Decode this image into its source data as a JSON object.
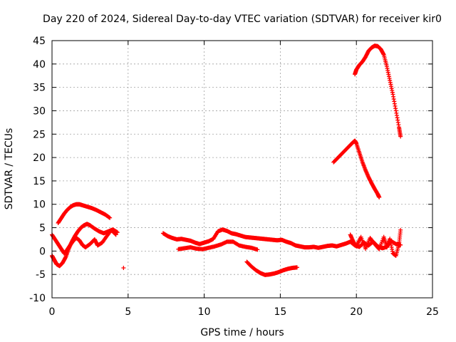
{
  "chart_data": {
    "type": "scatter",
    "title": "Day 220 of 2024, Sidereal Day-to-day VTEC variation (SDTVAR) for receiver kir0",
    "xlabel": "GPS time / hours",
    "ylabel": "SDTVAR / TECUs",
    "xlim": [
      0,
      25
    ],
    "ylim": [
      -10,
      45
    ],
    "xticks": [
      0,
      5,
      10,
      15,
      20,
      25
    ],
    "yticks": [
      -10,
      -5,
      0,
      5,
      10,
      15,
      20,
      25,
      30,
      35,
      40,
      45
    ],
    "grid": true,
    "marker": "+",
    "color": "#ff0000",
    "series": [
      {
        "name": "upper-arc-early",
        "x": [
          0.4,
          0.6,
          0.8,
          1.0,
          1.2,
          1.4,
          1.6,
          1.8,
          2.0,
          2.3,
          2.6,
          2.9,
          3.2,
          3.5,
          3.8
        ],
        "y": [
          6,
          7,
          8,
          8.8,
          9.4,
          9.8,
          10,
          10,
          9.8,
          9.5,
          9.2,
          8.8,
          8.3,
          7.8,
          7.1
        ]
      },
      {
        "name": "loop-early-a",
        "x": [
          0.0,
          0.1,
          0.2,
          0.3,
          0.5,
          0.7,
          0.9,
          1.1,
          1.3,
          1.5,
          1.7,
          1.9,
          2.1,
          2.3,
          2.5,
          2.8,
          3.1,
          3.4,
          3.7,
          4.0,
          4.3
        ],
        "y": [
          -1,
          -1.6,
          -2.2,
          -2.8,
          -3.2,
          -2.5,
          -1.3,
          0.5,
          2,
          3.2,
          4.2,
          5,
          5.5,
          5.8,
          5.5,
          4.8,
          4.2,
          3.8,
          4.2,
          4.6,
          4.0
        ]
      },
      {
        "name": "loop-early-b",
        "x": [
          0.0,
          0.2,
          0.4,
          0.6,
          0.8,
          1.0,
          1.2,
          1.4,
          1.6,
          1.8,
          2.0,
          2.2,
          2.5,
          2.8,
          3.0,
          3.3,
          3.6,
          3.9,
          4.2
        ],
        "y": [
          3.5,
          2.5,
          1.5,
          0.5,
          -0.5,
          0.3,
          1.3,
          2.2,
          2.8,
          2.3,
          1.3,
          0.8,
          1.5,
          2.5,
          1.2,
          1.8,
          3.2,
          4.5,
          3.5
        ]
      },
      {
        "name": "outlier",
        "x": [
          4.7
        ],
        "y": [
          -3.6
        ]
      },
      {
        "name": "middle-band",
        "x": [
          7.3,
          7.6,
          7.9,
          8.2,
          8.5,
          8.8,
          9.1,
          9.4,
          9.7,
          10.0,
          10.3,
          10.6,
          10.9,
          11.2,
          11.5,
          11.8,
          12.1,
          12.4,
          12.7,
          13.0,
          13.3,
          13.6,
          13.9,
          14.2,
          14.5,
          14.8,
          15.1,
          15.4,
          15.7,
          16.0,
          16.3,
          16.6,
          16.9,
          17.2,
          17.5,
          17.8,
          18.1,
          18.4,
          18.7,
          19.0,
          19.3,
          19.6,
          19.9,
          20.2,
          20.5,
          20.8,
          21.1,
          21.4,
          21.7,
          22.0,
          22.3,
          22.6,
          22.9
        ],
        "y": [
          3.8,
          3.2,
          2.8,
          2.5,
          2.6,
          2.4,
          2.2,
          1.8,
          1.5,
          1.8,
          2.1,
          2.6,
          4.2,
          4.6,
          4.3,
          3.8,
          3.6,
          3.3,
          3.0,
          2.9,
          2.8,
          2.7,
          2.6,
          2.5,
          2.4,
          2.3,
          2.4,
          2.0,
          1.7,
          1.2,
          1.0,
          0.8,
          0.8,
          0.9,
          0.7,
          0.9,
          1.1,
          1.2,
          1.0,
          1.3,
          1.6,
          2.0,
          1.2,
          0.9,
          1.8,
          1.2,
          2.0,
          1.0,
          0.6,
          0.9,
          2.1,
          1.5,
          1.3
        ]
      },
      {
        "name": "middle-band-low",
        "x": [
          8.3,
          8.7,
          9.1,
          9.5,
          9.9,
          10.3,
          10.7,
          11.1,
          11.5,
          11.9,
          12.3,
          12.7,
          13.1,
          13.5
        ],
        "y": [
          0.4,
          0.6,
          0.8,
          0.5,
          0.4,
          0.7,
          1.0,
          1.4,
          2.0,
          2.0,
          1.2,
          0.9,
          0.7,
          0.3
        ]
      },
      {
        "name": "dip-arc",
        "x": [
          12.8,
          13.1,
          13.4,
          13.7,
          14.0,
          14.3,
          14.6,
          14.9,
          15.2,
          15.5,
          15.8,
          16.1
        ],
        "y": [
          -2.3,
          -3.3,
          -4.1,
          -4.7,
          -5.1,
          -5.0,
          -4.8,
          -4.5,
          -4.1,
          -3.8,
          -3.6,
          -3.5
        ]
      },
      {
        "name": "late-cluster",
        "x": [
          19.6,
          19.8,
          20.0,
          20.3,
          20.6,
          20.9,
          21.2,
          21.5,
          21.8,
          22.0,
          22.2,
          22.4,
          22.6,
          22.8,
          22.9
        ],
        "y": [
          3.5,
          2.0,
          1.0,
          3.0,
          0.5,
          2.8,
          1.5,
          0.4,
          3.0,
          0.8,
          2.6,
          -0.5,
          -1.0,
          1.5,
          4.5
        ]
      },
      {
        "name": "mid-arc-late",
        "x": [
          18.5,
          18.8,
          19.1,
          19.4,
          19.7,
          19.9,
          20.0,
          20.2,
          20.4,
          20.6,
          20.8,
          21.0,
          21.2,
          21.4,
          21.5
        ],
        "y": [
          19,
          20,
          21,
          22,
          23,
          23.6,
          23.0,
          21.0,
          19.0,
          17.3,
          15.8,
          14.5,
          13.3,
          12.2,
          11.5
        ]
      },
      {
        "name": "high-arc-late",
        "x": [
          19.9,
          20.0,
          20.2,
          20.4,
          20.6,
          20.8,
          21.0,
          21.2,
          21.4,
          21.6,
          21.8,
          22.0,
          22.2,
          22.4,
          22.6,
          22.8,
          22.9
        ],
        "y": [
          37.8,
          38.8,
          39.8,
          40.5,
          41.5,
          42.8,
          43.5,
          43.9,
          43.8,
          43.2,
          42.0,
          39.5,
          36.5,
          33.5,
          30.0,
          26.5,
          24.5
        ]
      }
    ]
  }
}
